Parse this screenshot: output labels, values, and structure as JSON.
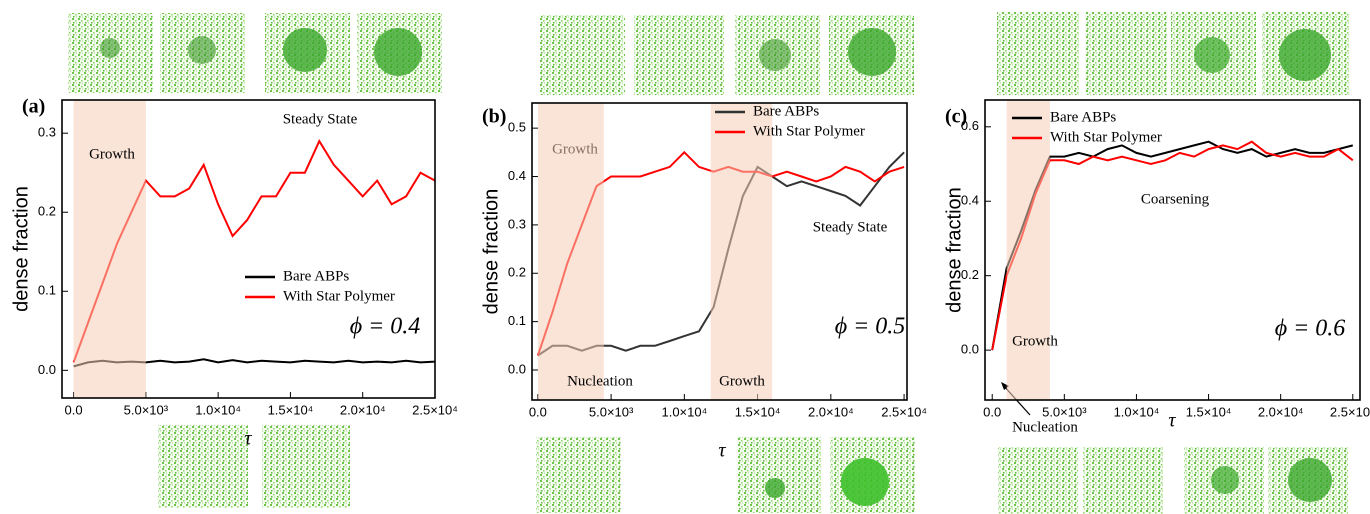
{
  "chart_data": [
    {
      "type": "line",
      "panel_label": "(a)",
      "x_label": "τ",
      "y_label": "dense fraction",
      "x": [
        0,
        1000,
        2000,
        3000,
        4000,
        5000,
        6000,
        7000,
        8000,
        9000,
        10000,
        11000,
        12000,
        13000,
        14000,
        15000,
        16000,
        17000,
        18000,
        19000,
        20000,
        21000,
        22000,
        23000,
        24000,
        25000
      ],
      "series": [
        {
          "name": "Bare ABPs",
          "color": "#000000",
          "values": [
            0.005,
            0.01,
            0.012,
            0.01,
            0.011,
            0.01,
            0.012,
            0.01,
            0.011,
            0.014,
            0.01,
            0.013,
            0.01,
            0.012,
            0.011,
            0.01,
            0.012,
            0.011,
            0.01,
            0.012,
            0.01,
            0.011,
            0.01,
            0.012,
            0.01,
            0.011
          ]
        },
        {
          "name": "With Star Polymer",
          "color": "#ff0000",
          "values": [
            0.01,
            0.06,
            0.11,
            0.16,
            0.2,
            0.24,
            0.22,
            0.22,
            0.23,
            0.26,
            0.21,
            0.17,
            0.19,
            0.22,
            0.22,
            0.25,
            0.25,
            0.29,
            0.26,
            0.24,
            0.22,
            0.24,
            0.21,
            0.22,
            0.25,
            0.24
          ]
        }
      ],
      "highlight_ranges": [
        [
          0,
          5000
        ]
      ],
      "annotations": [
        "Growth",
        "Steady State",
        "ϕ = 0.4"
      ],
      "xlim": [
        -800,
        25000
      ],
      "ylim": [
        -0.035,
        0.342
      ],
      "xticks": [
        {
          "value": 0,
          "label": "0.0"
        },
        {
          "value": 5000,
          "label": "5.0×10³"
        },
        {
          "value": 10000,
          "label": "1.0×10⁴"
        },
        {
          "value": 15000,
          "label": "1.5×10⁴"
        },
        {
          "value": 20000,
          "label": "2.0×10⁴"
        },
        {
          "value": 25000,
          "label": "2.5×10⁴"
        }
      ],
      "yticks": [
        {
          "value": 0,
          "label": "0.0"
        },
        0.1,
        0.2,
        0.3
      ],
      "legend": "lower right"
    },
    {
      "type": "line",
      "panel_label": "(b)",
      "x_label": "τ",
      "y_label": "dense fraction",
      "x": [
        0,
        1000,
        2000,
        3000,
        4000,
        5000,
        6000,
        7000,
        8000,
        9000,
        10000,
        11000,
        12000,
        13000,
        14000,
        15000,
        16000,
        17000,
        18000,
        19000,
        20000,
        21000,
        22000,
        23000,
        24000,
        25000
      ],
      "series": [
        {
          "name": "Bare ABPs",
          "color": "#333333",
          "values": [
            0.03,
            0.05,
            0.05,
            0.04,
            0.05,
            0.05,
            0.04,
            0.05,
            0.05,
            0.06,
            0.07,
            0.08,
            0.13,
            0.25,
            0.36,
            0.42,
            0.4,
            0.38,
            0.39,
            0.38,
            0.37,
            0.36,
            0.34,
            0.38,
            0.42,
            0.45
          ]
        },
        {
          "name": "With Star Polymer",
          "color": "#ff0000",
          "values": [
            0.03,
            0.12,
            0.22,
            0.3,
            0.38,
            0.4,
            0.4,
            0.4,
            0.41,
            0.42,
            0.45,
            0.42,
            0.41,
            0.42,
            0.41,
            0.41,
            0.4,
            0.41,
            0.4,
            0.39,
            0.4,
            0.42,
            0.41,
            0.39,
            0.41,
            0.42
          ]
        }
      ],
      "highlight_ranges": [
        [
          0,
          4500
        ],
        [
          11800,
          16000
        ]
      ],
      "annotations": [
        "Growth",
        "Nucleation",
        "Growth",
        "Steady State",
        "ϕ = 0.5"
      ],
      "xlim": [
        -400,
        25200
      ],
      "ylim": [
        -0.062,
        0.552
      ],
      "xticks": [
        {
          "value": 0,
          "label": "0.0"
        },
        {
          "value": 5000,
          "label": "5.0×10³"
        },
        {
          "value": 10000,
          "label": "1.0×10⁴"
        },
        {
          "value": 15000,
          "label": "1.5×10⁴"
        },
        {
          "value": 20000,
          "label": "2.0×10⁴"
        },
        {
          "value": 25000,
          "label": "2.5×10⁴"
        }
      ],
      "yticks": [
        {
          "value": 0,
          "label": "0.0"
        },
        0.1,
        0.2,
        0.3,
        0.4,
        0.5
      ],
      "legend": "upper right"
    },
    {
      "type": "line",
      "panel_label": "(c)",
      "x_label": "τ",
      "y_label": "dense fraction",
      "x": [
        0,
        1000,
        2000,
        3000,
        4000,
        5000,
        6000,
        7000,
        8000,
        9000,
        10000,
        11000,
        12000,
        13000,
        14000,
        15000,
        16000,
        17000,
        18000,
        19000,
        20000,
        21000,
        22000,
        23000,
        24000,
        25000
      ],
      "series": [
        {
          "name": "Bare ABPs",
          "color": "#000000",
          "values": [
            0.0,
            0.22,
            0.32,
            0.43,
            0.52,
            0.52,
            0.53,
            0.52,
            0.54,
            0.55,
            0.53,
            0.52,
            0.53,
            0.54,
            0.55,
            0.56,
            0.54,
            0.53,
            0.54,
            0.52,
            0.53,
            0.54,
            0.53,
            0.53,
            0.54,
            0.55
          ]
        },
        {
          "name": "With Star Polymer",
          "color": "#ff0000",
          "values": [
            0.0,
            0.2,
            0.3,
            0.42,
            0.51,
            0.51,
            0.5,
            0.52,
            0.51,
            0.52,
            0.51,
            0.5,
            0.51,
            0.53,
            0.52,
            0.54,
            0.55,
            0.54,
            0.56,
            0.53,
            0.52,
            0.53,
            0.52,
            0.52,
            0.54,
            0.51
          ]
        }
      ],
      "highlight_ranges": [
        [
          1000,
          4000
        ]
      ],
      "annotations": [
        "Growth",
        "Nucleation",
        "Coarsening",
        "ϕ = 0.6"
      ],
      "xlim": [
        -500,
        25500
      ],
      "ylim": [
        -0.134,
        0.672
      ],
      "xticks": [
        {
          "value": 0,
          "label": "0.0"
        },
        {
          "value": 5000,
          "label": "5.0×10³"
        },
        {
          "value": 10000,
          "label": "1.0×10⁴"
        },
        {
          "value": 15000,
          "label": "1.5×10⁴"
        },
        {
          "value": 20000,
          "label": "2.0×10⁴"
        },
        {
          "value": 25000,
          "label": "2.5×10⁴"
        }
      ],
      "yticks": [
        {
          "value": 0,
          "label": "0.0"
        },
        0.2,
        0.4,
        0.6
      ],
      "legend": "upper left"
    }
  ]
}
